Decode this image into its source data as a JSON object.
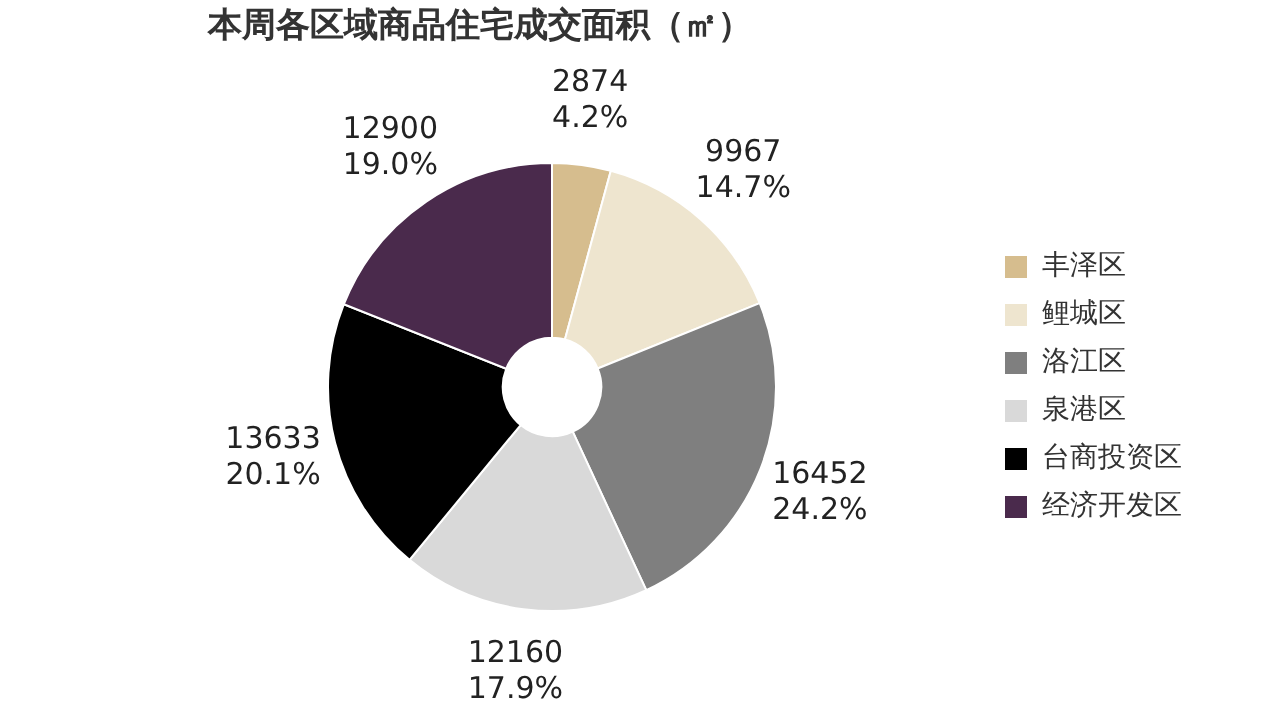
{
  "chart_data": {
    "type": "donut",
    "title": "本周各区域商品住宅成交面积（㎡）",
    "categories": [
      "丰泽区",
      "鲤城区",
      "洛江区",
      "泉港区",
      "台商投资区",
      "经济开发区"
    ],
    "values": [
      2874,
      9967,
      16452,
      12160,
      13633,
      12900
    ],
    "value_labels": [
      "2874\n4.2%",
      "9967\n14.7%",
      "16452\n24.2%",
      "12160\n17.9%",
      "13633\n20.1%",
      "12900\n19.0%"
    ],
    "colors": [
      "#d6bd8e",
      "#eee5cf",
      "#7f7f7f",
      "#d9d9d9",
      "#000000",
      "#4a2a4c"
    ],
    "legend": "right"
  }
}
